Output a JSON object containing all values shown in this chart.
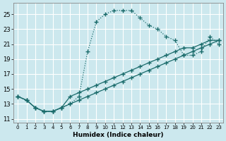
{
  "xlabel": "Humidex (Indice chaleur)",
  "background_color": "#cce8ee",
  "grid_color": "#ffffff",
  "line_color": "#1a6b6b",
  "xlim": [
    -0.5,
    23.5
  ],
  "ylim": [
    10.5,
    26.5
  ],
  "xticks": [
    0,
    1,
    2,
    3,
    4,
    5,
    6,
    7,
    8,
    9,
    10,
    11,
    12,
    13,
    14,
    15,
    16,
    17,
    18,
    19,
    20,
    21,
    22,
    23
  ],
  "yticks": [
    11,
    13,
    15,
    17,
    19,
    21,
    23,
    25
  ],
  "series": [
    {
      "x": [
        0,
        1,
        2,
        3,
        4,
        5,
        6,
        7,
        8,
        9,
        10,
        11,
        12,
        13,
        14,
        15,
        16,
        17,
        18,
        19,
        20,
        21,
        22,
        23
      ],
      "y": [
        14,
        13.5,
        12.5,
        12,
        12,
        12.5,
        13,
        14,
        20,
        24,
        25,
        25.5,
        25.5,
        25.5,
        24.5,
        23.5,
        23,
        22,
        21.5,
        19.5,
        19.5,
        20,
        22,
        21
      ],
      "linestyle": "dotted",
      "linewidth": 0.9,
      "marker": "+",
      "markersize": 5
    },
    {
      "x": [
        0,
        1,
        2,
        3,
        4,
        5,
        6,
        7,
        8,
        9,
        10,
        11,
        12,
        13,
        14,
        15,
        16,
        17,
        18,
        19,
        20,
        21,
        22,
        23
      ],
      "y": [
        14,
        13.5,
        12.5,
        12,
        12,
        12.5,
        13,
        13.5,
        14,
        14.5,
        15,
        15.5,
        16,
        16.5,
        17,
        17.5,
        18,
        18.5,
        19,
        19.5,
        20,
        20.5,
        21,
        21.5
      ],
      "linestyle": "solid",
      "linewidth": 0.9,
      "marker": "+",
      "markersize": 5
    },
    {
      "x": [
        0,
        1,
        2,
        3,
        4,
        5,
        6,
        7,
        8,
        9,
        10,
        11,
        12,
        13,
        14,
        15,
        16,
        17,
        18,
        19,
        20,
        21,
        22,
        23
      ],
      "y": [
        14,
        13.5,
        12.5,
        12,
        12,
        12.5,
        14,
        14.5,
        15,
        15.5,
        16,
        16.5,
        17,
        17.5,
        18,
        18.5,
        19,
        19.5,
        20,
        20.5,
        20.5,
        21,
        21.5,
        21.5
      ],
      "linestyle": "solid",
      "linewidth": 0.9,
      "marker": "+",
      "markersize": 5
    }
  ]
}
